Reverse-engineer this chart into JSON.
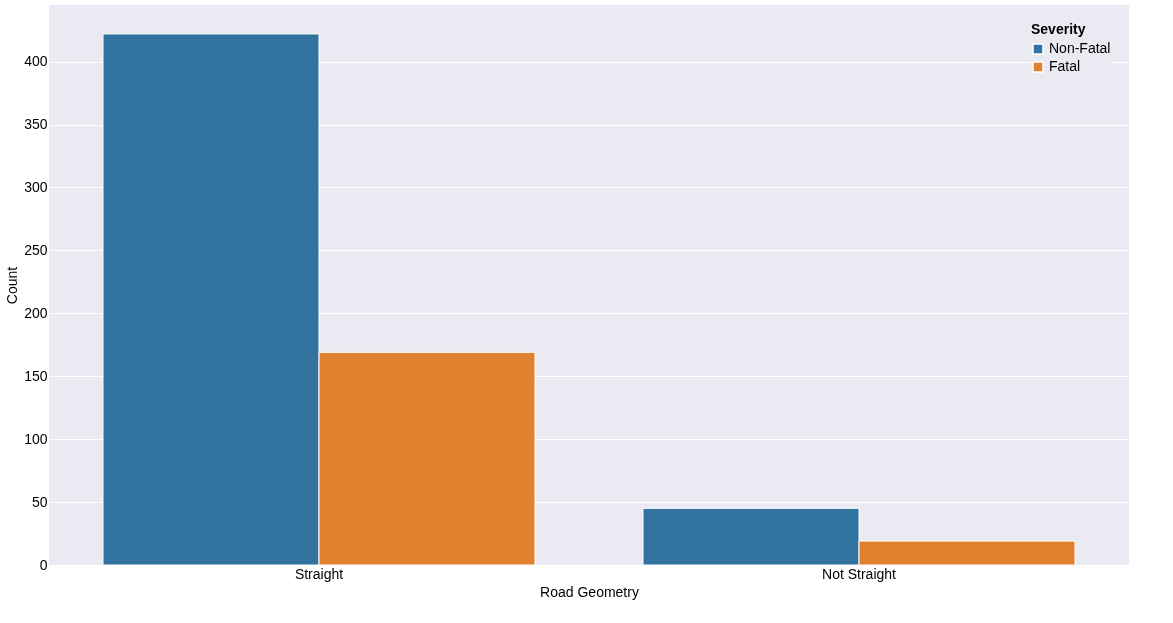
{
  "chart_data": {
    "type": "bar",
    "xlabel": "Road Geometry",
    "ylabel": "Count",
    "legend_title": "Severity",
    "categories": [
      "Straight",
      "Not Straight"
    ],
    "series": [
      {
        "name": "Non-Fatal",
        "color": "#31729f",
        "values": [
          422,
          45
        ]
      },
      {
        "name": "Fatal",
        "color": "#e0812f",
        "values": [
          169,
          19
        ]
      }
    ],
    "ylim": [
      0,
      445
    ],
    "yticks": [
      0,
      50,
      100,
      150,
      200,
      250,
      300,
      350,
      400
    ],
    "grid": "y",
    "legend": "top right"
  }
}
